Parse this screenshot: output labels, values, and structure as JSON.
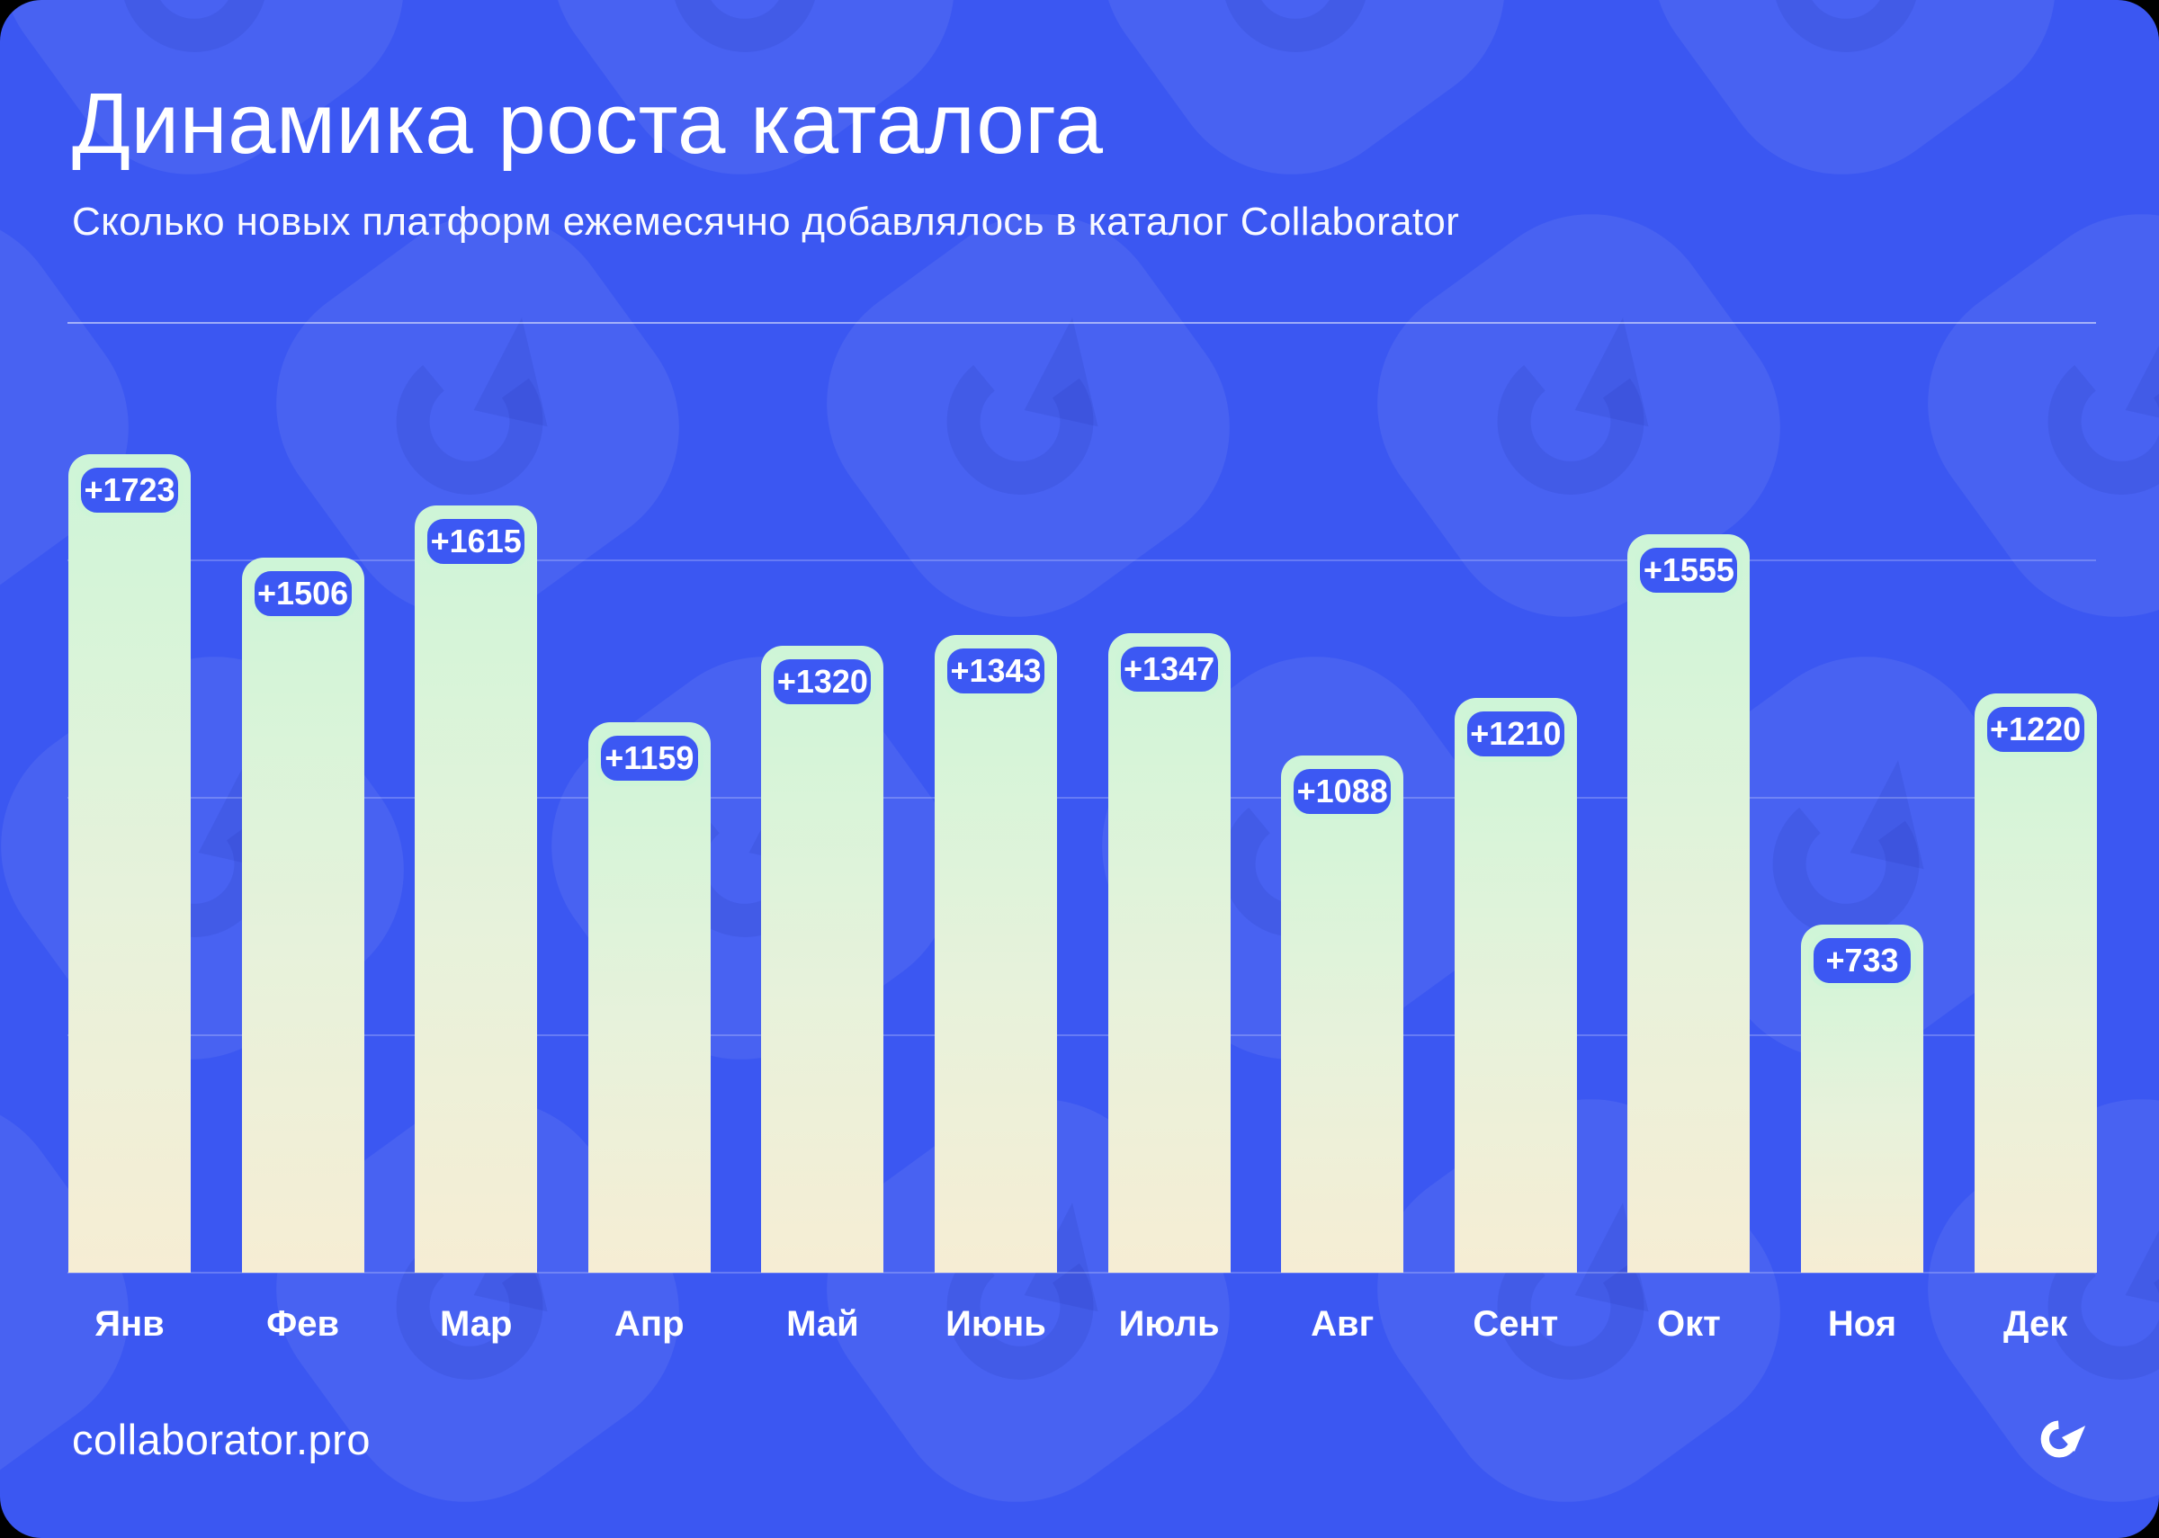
{
  "page": {
    "title": "Динамика роста каталога",
    "subtitle": "Сколько новых платформ ежемесячно добавлялось в каталог Collaborator",
    "footer": {
      "site": "collaborator.pro",
      "logo_icon": "collaborator-logo"
    }
  },
  "colors": {
    "background_blue": "#3B57F2",
    "bar_gradient_top": "#CEF5D7",
    "bar_gradient_bottom": "#F6EDD4",
    "chip_fill": "#3C58F3",
    "chip_border": "#CEF5D7",
    "text_white": "#FFFFFF"
  },
  "chart_data": {
    "type": "bar",
    "title": "Динамика роста каталога",
    "subtitle": "Сколько новых платформ ежемесячно добавлялось в каталог Collaborator",
    "categories": [
      "Янв",
      "Фев",
      "Мар",
      "Апр",
      "Май",
      "Июнь",
      "Июль",
      "Авг",
      "Сент",
      "Окт",
      "Ноя",
      "Дек"
    ],
    "values": [
      1723,
      1506,
      1615,
      1159,
      1320,
      1343,
      1347,
      1088,
      1210,
      1555,
      733,
      1220
    ],
    "value_labels": [
      "+1723",
      "+1506",
      "+1615",
      "+1159",
      "+1320",
      "+1343",
      "+1347",
      "+1088",
      "+1210",
      "+1555",
      "+733",
      "+1220"
    ],
    "xlabel": "",
    "ylabel": "",
    "ylim": [
      0,
      2000
    ],
    "gridline_values": [
      0,
      500,
      1000,
      1500,
      2000
    ],
    "grid": true,
    "legend": false,
    "data_label_prefix": "+"
  }
}
